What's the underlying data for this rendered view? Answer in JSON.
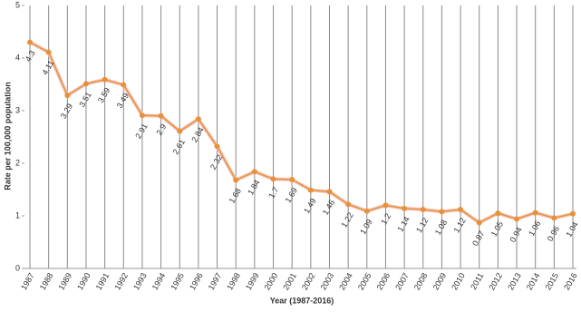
{
  "chart_data": {
    "type": "line",
    "x_label": "Year (1987-2016)",
    "y_label": "Rate per 100,000 population",
    "categories": [
      "1987",
      "1988",
      "1989",
      "1990",
      "1991",
      "1992",
      "1993",
      "1994",
      "1995",
      "1996",
      "1997",
      "1998",
      "1999",
      "2000",
      "2001",
      "2002",
      "2003",
      "2004",
      "2005",
      "2006",
      "2007",
      "2008",
      "2009",
      "2010",
      "2011",
      "2012",
      "2013",
      "2014",
      "2015",
      "2016"
    ],
    "values": [
      4.3,
      4.11,
      3.29,
      3.51,
      3.59,
      3.49,
      2.91,
      2.9,
      2.61,
      2.84,
      2.32,
      1.68,
      1.84,
      1.7,
      1.69,
      1.49,
      1.46,
      1.22,
      1.09,
      1.2,
      1.14,
      1.12,
      1.08,
      1.12,
      0.87,
      1.05,
      0.94,
      1.06,
      0.96,
      1.04
    ],
    "color": "#e8913a",
    "ylim": [
      0,
      5
    ],
    "yticks": [
      0,
      1,
      2,
      3,
      4,
      5
    ],
    "grid": true
  }
}
